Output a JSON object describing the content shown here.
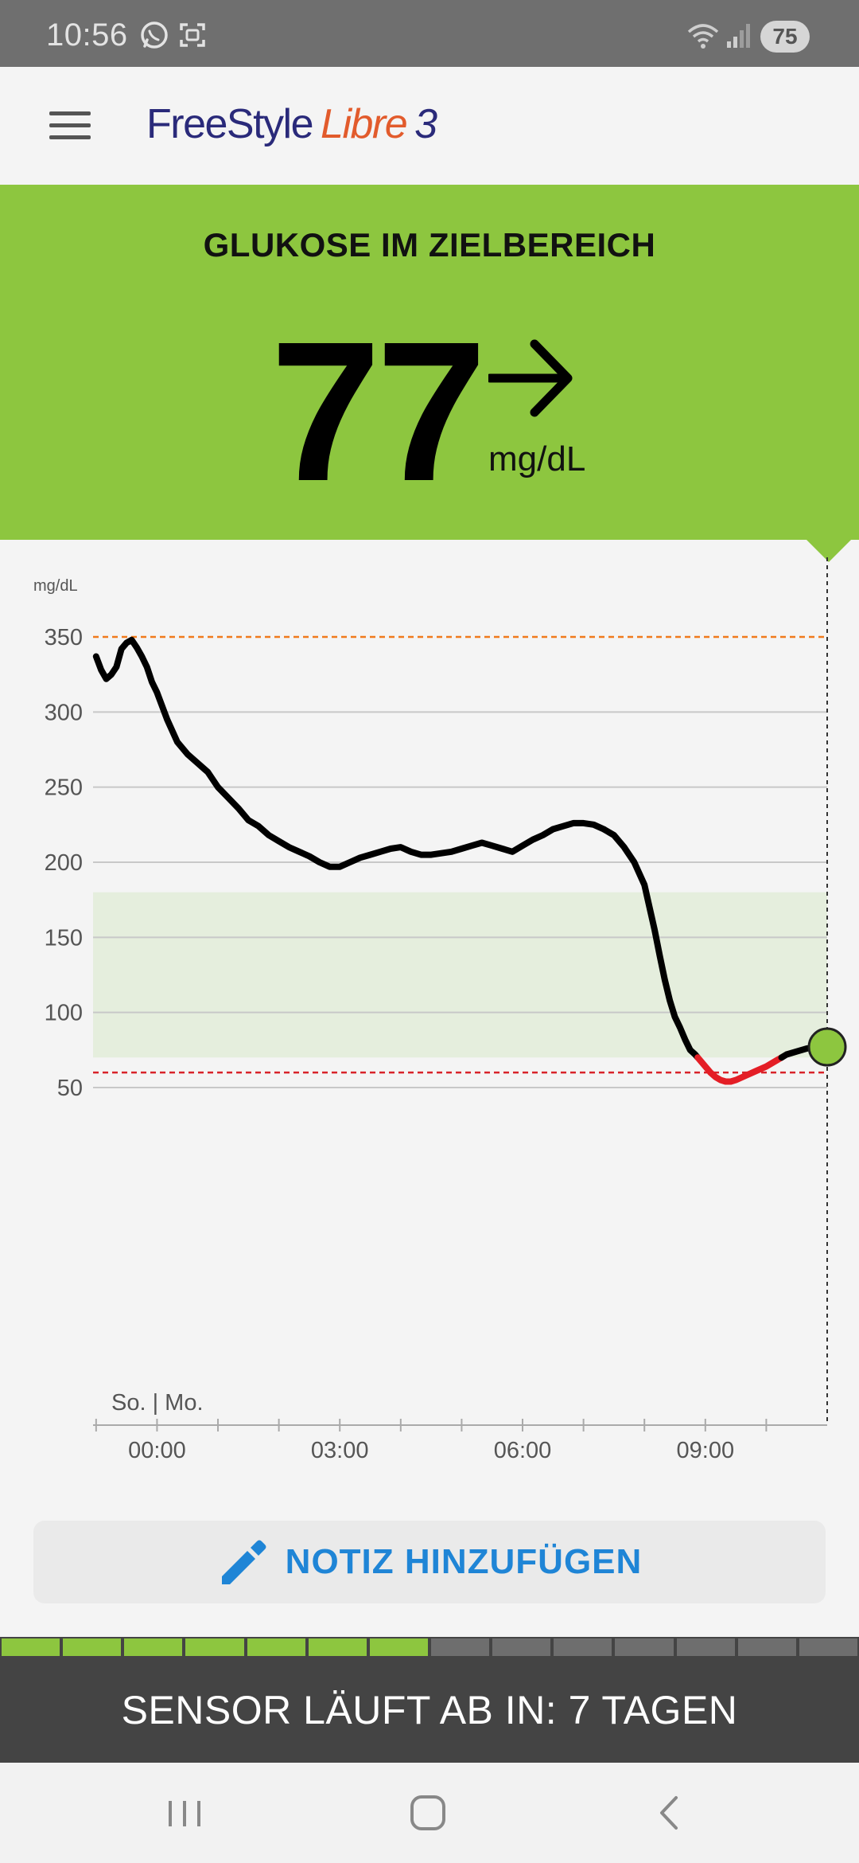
{
  "status_bar": {
    "time": "10:56",
    "battery": "75",
    "icons": [
      "whatsapp-icon",
      "screenshot-icon",
      "wifi-icon",
      "signal-icon"
    ]
  },
  "app": {
    "logo_freestyle": "FreeStyle",
    "logo_libre": "Libre",
    "logo_three": "3",
    "brand_colors": {
      "navy": "#2a2a7a",
      "orange": "#e25b2c"
    }
  },
  "glucose": {
    "status": "GLUKOSE IM ZIELBEREICH",
    "value": "77",
    "unit": "mg/dL",
    "trend": "arrow-right-icon",
    "panel_color": "#8dc63f"
  },
  "chart_data": {
    "type": "line",
    "unit_label": "mg/dL",
    "yticks": [
      "350",
      "300",
      "250",
      "200",
      "150",
      "100",
      "50"
    ],
    "ylim": [
      0,
      350
    ],
    "xticks": [
      "00:00",
      "03:00",
      "06:00",
      "09:00"
    ],
    "xlim_hours": [
      -1.05,
      11.0
    ],
    "day_label": "So. | Mo.",
    "target_range": [
      70,
      180
    ],
    "high_alarm": 350,
    "low_alarm": 60,
    "series": [
      {
        "x": [
          "23:00",
          "23:05",
          "23:10",
          "23:15",
          "23:20",
          "23:25",
          "23:30",
          "23:35",
          "23:40",
          "23:45",
          "23:50",
          "23:55",
          "00:00",
          "00:10",
          "00:20",
          "00:30",
          "00:40",
          "00:50",
          "01:00",
          "01:10",
          "01:20",
          "01:30",
          "01:40",
          "01:50",
          "02:00",
          "02:10",
          "02:20",
          "02:30",
          "02:40",
          "02:50",
          "03:00",
          "03:10",
          "03:20",
          "03:30",
          "03:40",
          "03:50",
          "04:00",
          "04:10",
          "04:20",
          "04:30",
          "04:40",
          "04:50",
          "05:00",
          "05:10",
          "05:20",
          "05:30",
          "05:40",
          "05:50",
          "06:00",
          "06:10",
          "06:20",
          "06:30",
          "06:40",
          "06:50",
          "07:00",
          "07:10",
          "07:20",
          "07:30",
          "07:40",
          "07:50",
          "08:00",
          "08:05",
          "08:10",
          "08:15",
          "08:20",
          "08:25",
          "08:30",
          "08:35",
          "08:40",
          "08:45",
          "08:50",
          "08:55",
          "09:00",
          "09:05",
          "09:10",
          "09:15",
          "09:20",
          "09:25",
          "09:30",
          "09:40",
          "09:50",
          "10:00",
          "10:10",
          "10:20",
          "10:30",
          "10:40",
          "10:50",
          "11:00"
        ],
        "values": [
          337,
          328,
          322,
          325,
          330,
          342,
          346,
          348,
          343,
          337,
          330,
          320,
          313,
          295,
          280,
          272,
          266,
          260,
          250,
          243,
          236,
          228,
          224,
          218,
          214,
          210,
          207,
          204,
          200,
          197,
          197,
          200,
          203,
          205,
          207,
          209,
          210,
          207,
          205,
          205,
          206,
          207,
          209,
          211,
          213,
          211,
          209,
          207,
          211,
          215,
          218,
          222,
          224,
          226,
          226,
          225,
          222,
          218,
          210,
          200,
          185,
          170,
          155,
          138,
          122,
          108,
          97,
          90,
          82,
          75,
          72,
          68,
          64,
          60,
          57,
          55,
          54,
          54,
          55,
          58,
          61,
          64,
          68,
          72,
          74,
          76,
          77,
          77
        ],
        "low_threshold": 70
      }
    ],
    "colors": {
      "line": "#000000",
      "low_line": "#e41e26",
      "target_fill": "#e5eedd",
      "high_alarm": "#f07a1c",
      "low_alarm": "#d8232a",
      "current_dot": "#8dc63f"
    }
  },
  "note_button": {
    "label": "NOTIZ HINZUFÜGEN",
    "color": "#1f85d6"
  },
  "sensor": {
    "text": "SENSOR LÄUFT AB IN: 7 TAGEN",
    "segments_total": 14,
    "segments_used": 7,
    "segment_color_used": "#8dc63f",
    "segment_color_remaining": "#6e6e6e"
  }
}
